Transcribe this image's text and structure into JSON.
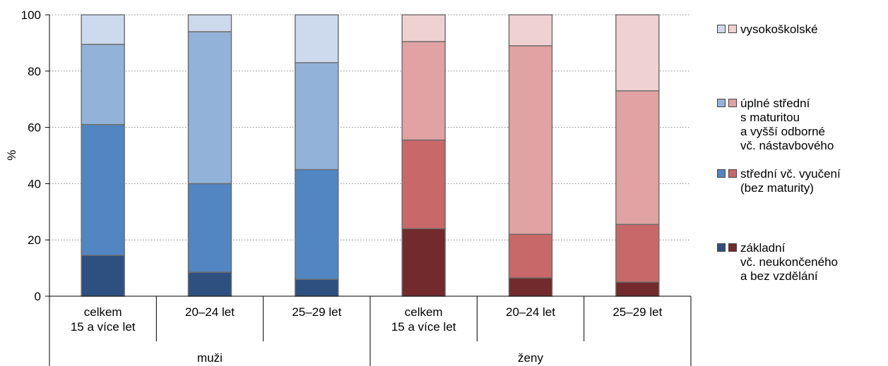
{
  "chart_data": {
    "type": "bar",
    "stacked": true,
    "ylabel": "%",
    "ylim": [
      0,
      100
    ],
    "yticks": [
      0,
      20,
      40,
      60,
      80,
      100
    ],
    "grid": true,
    "legend_position": "right",
    "categories": [
      {
        "label": "celkem\n15 a více let",
        "group": "muži"
      },
      {
        "label": "20–24 let",
        "group": "muži"
      },
      {
        "label": "25–29 let",
        "group": "muži"
      },
      {
        "label": "celkem\n15 a více let",
        "group": "ženy"
      },
      {
        "label": "20–24 let",
        "group": "ženy"
      },
      {
        "label": "25–29 let",
        "group": "ženy"
      }
    ],
    "groups": [
      "muži",
      "ženy"
    ],
    "series": [
      {
        "name": "základní vč. neukončeného a bez vzdělání",
        "values": [
          14.5,
          8.5,
          6.0,
          24.0,
          6.5,
          5.0
        ],
        "colors": {
          "muži": "#2e5081",
          "ženy": "#722a2c"
        }
      },
      {
        "name": "střední vč. vyučení (bez maturity)",
        "values": [
          46.5,
          31.5,
          39.0,
          31.5,
          15.5,
          20.5
        ],
        "colors": {
          "muži": "#5286c2",
          "ženy": "#c86868"
        }
      },
      {
        "name": "úplné střední s maturitou a vyšší odborné vč. nástavbového",
        "values": [
          28.5,
          54.0,
          38.0,
          35.0,
          67.0,
          47.5
        ],
        "colors": {
          "muži": "#93b2d9",
          "ženy": "#e0a2a2"
        }
      },
      {
        "name": "vysokoškolské",
        "values": [
          10.5,
          6.0,
          17.0,
          9.5,
          11.0,
          27.0
        ],
        "colors": {
          "muži": "#cdd9ec",
          "ženy": "#f0d1d1"
        }
      }
    ],
    "legend": [
      {
        "text": "vysokoškolské"
      },
      {
        "text": "úplné střední\ns maturitou\na vyšší odborné\nvč. nástavbového"
      },
      {
        "text": "střední vč. vyučení\n(bez maturity)"
      },
      {
        "text": "základní\nvč. neukončeného\na bez vzdělání"
      }
    ]
  }
}
